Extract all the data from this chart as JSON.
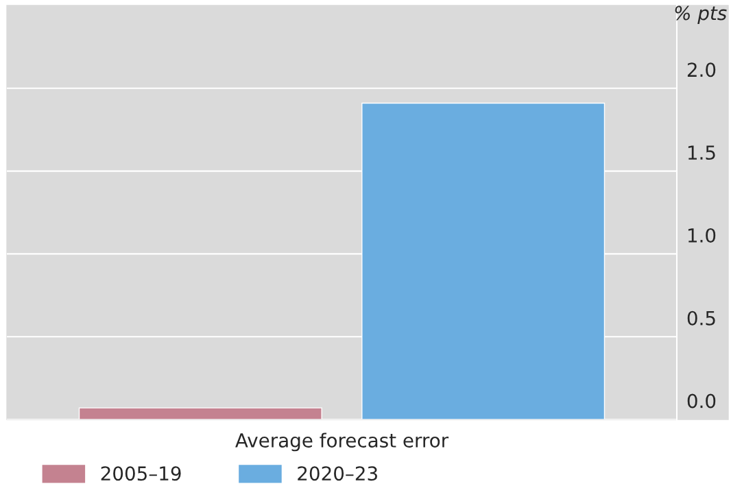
{
  "chart_data": {
    "type": "bar",
    "ylabel": "% pts",
    "categories": [
      "Average forecast error"
    ],
    "series": [
      {
        "name": "2005–19",
        "color": "#c48290",
        "values": [
          0.07
        ]
      },
      {
        "name": "2020–23",
        "color": "#6aade0",
        "values": [
          1.91
        ]
      }
    ],
    "ylim": [
      0,
      2.5
    ],
    "yticks": [
      {
        "value": 0,
        "label": "0.0"
      },
      {
        "value": 0.5,
        "label": "0.5"
      },
      {
        "value": 1,
        "label": "1.0"
      },
      {
        "value": 1.5,
        "label": "1.5"
      },
      {
        "value": 2,
        "label": "2.0"
      }
    ],
    "grid": "y",
    "legend": "bottom"
  }
}
